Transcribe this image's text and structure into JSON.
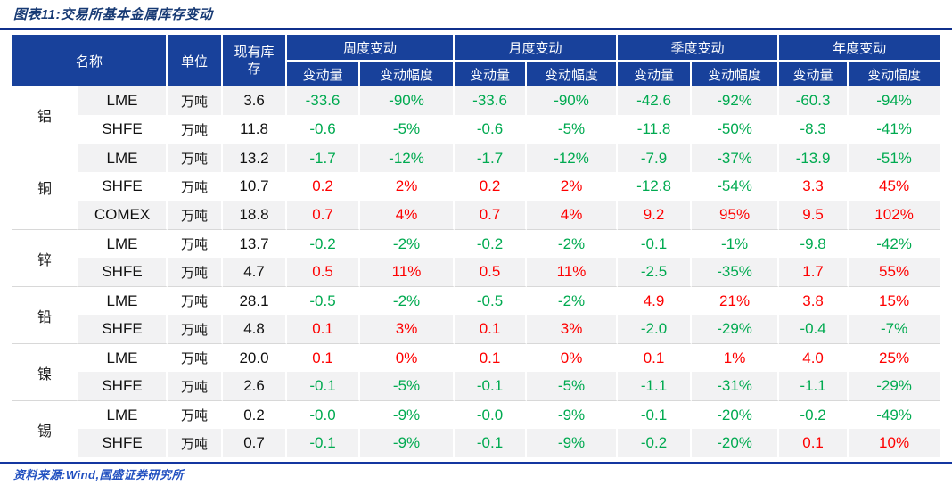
{
  "title": "图表11:交易所基本金属库存变动",
  "source": "资料来源:Wind,国盛证券研究所",
  "colors": {
    "header_bg": "#18419b",
    "title_text": "#173a74",
    "source_text": "#2150c0",
    "rule_blue": "#10308c",
    "positive_red": "#fe0000",
    "negative_green": "#00aa50",
    "stripe_gray": "#f2f2f3"
  },
  "table": {
    "headers": {
      "name": "名称",
      "unit": "单位",
      "inventory": "现有库存",
      "week": "周度变动",
      "month": "月度变动",
      "quarter": "季度变动",
      "year": "年度变动",
      "amount": "变动量",
      "rate": "变动幅度"
    },
    "rows": [
      {
        "metal": "铝",
        "span": 2,
        "exchange": "LME",
        "unit": "万吨",
        "inventory": "3.6",
        "values": [
          "-33.6",
          "-90%",
          "-33.6",
          "-90%",
          "-42.6",
          "-92%",
          "-60.3",
          "-94%"
        ]
      },
      {
        "exchange": "SHFE",
        "unit": "万吨",
        "inventory": "11.8",
        "values": [
          "-0.6",
          "-5%",
          "-0.6",
          "-5%",
          "-11.8",
          "-50%",
          "-8.3",
          "-41%"
        ]
      },
      {
        "metal": "铜",
        "span": 3,
        "exchange": "LME",
        "unit": "万吨",
        "inventory": "13.2",
        "values": [
          "-1.7",
          "-12%",
          "-1.7",
          "-12%",
          "-7.9",
          "-37%",
          "-13.9",
          "-51%"
        ]
      },
      {
        "exchange": "SHFE",
        "unit": "万吨",
        "inventory": "10.7",
        "values": [
          "0.2",
          "2%",
          "0.2",
          "2%",
          "-12.8",
          "-54%",
          "3.3",
          "45%"
        ]
      },
      {
        "exchange": "COMEX",
        "unit": "万吨",
        "inventory": "18.8",
        "values": [
          "0.7",
          "4%",
          "0.7",
          "4%",
          "9.2",
          "95%",
          "9.5",
          "102%"
        ]
      },
      {
        "metal": "锌",
        "span": 2,
        "exchange": "LME",
        "unit": "万吨",
        "inventory": "13.7",
        "values": [
          "-0.2",
          "-2%",
          "-0.2",
          "-2%",
          "-0.1",
          "-1%",
          "-9.8",
          "-42%"
        ]
      },
      {
        "exchange": "SHFE",
        "unit": "万吨",
        "inventory": "4.7",
        "values": [
          "0.5",
          "11%",
          "0.5",
          "11%",
          "-2.5",
          "-35%",
          "1.7",
          "55%"
        ]
      },
      {
        "metal": "铅",
        "span": 2,
        "exchange": "LME",
        "unit": "万吨",
        "inventory": "28.1",
        "values": [
          "-0.5",
          "-2%",
          "-0.5",
          "-2%",
          "4.9",
          "21%",
          "3.8",
          "15%"
        ]
      },
      {
        "exchange": "SHFE",
        "unit": "万吨",
        "inventory": "4.8",
        "values": [
          "0.1",
          "3%",
          "0.1",
          "3%",
          "-2.0",
          "-29%",
          "-0.4",
          "-7%"
        ]
      },
      {
        "metal": "镍",
        "span": 2,
        "exchange": "LME",
        "unit": "万吨",
        "inventory": "20.0",
        "values": [
          "0.1",
          "0%",
          "0.1",
          "0%",
          "0.1",
          "1%",
          "4.0",
          "25%"
        ]
      },
      {
        "exchange": "SHFE",
        "unit": "万吨",
        "inventory": "2.6",
        "values": [
          "-0.1",
          "-5%",
          "-0.1",
          "-5%",
          "-1.1",
          "-31%",
          "-1.1",
          "-29%"
        ]
      },
      {
        "metal": "锡",
        "span": 2,
        "exchange": "LME",
        "unit": "万吨",
        "inventory": "0.2",
        "values": [
          "-0.0",
          "-9%",
          "-0.0",
          "-9%",
          "-0.1",
          "-20%",
          "-0.2",
          "-49%"
        ]
      },
      {
        "exchange": "SHFE",
        "unit": "万吨",
        "inventory": "0.7",
        "values": [
          "-0.1",
          "-9%",
          "-0.1",
          "-9%",
          "-0.2",
          "-20%",
          "0.1",
          "10%"
        ]
      }
    ]
  }
}
